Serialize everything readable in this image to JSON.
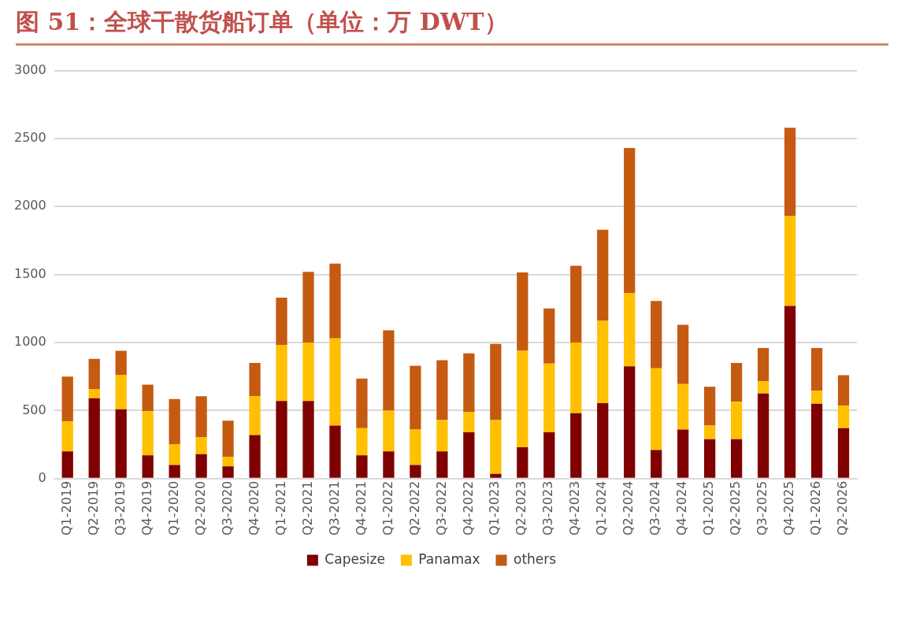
{
  "chart_data": {
    "type": "bar",
    "title": "图 51：全球干散货船订单（单位：万 DWT）",
    "stacked": true,
    "grid": "y",
    "legend": "bottom",
    "categories": [
      "Q1-2019",
      "Q2-2019",
      "Q3-2019",
      "Q4-2019",
      "Q1-2020",
      "Q2-2020",
      "Q3-2020",
      "Q4-2020",
      "Q1-2021",
      "Q2-2021",
      "Q3-2021",
      "Q4-2021",
      "Q1-2022",
      "Q2-2022",
      "Q3-2022",
      "Q4-2022",
      "Q1-2023",
      "Q2-2023",
      "Q3-2023",
      "Q4-2023",
      "Q1-2024",
      "Q2-2024",
      "Q3-2024",
      "Q4-2024",
      "Q1-2025",
      "Q2-2025",
      "Q3-2025",
      "Q4-2025",
      "Q1-2026",
      "Q2-2026"
    ],
    "ylim": [
      0,
      3000
    ],
    "yticks": [
      0,
      500,
      1000,
      1500,
      2000,
      2500,
      3000
    ],
    "series": [
      {
        "name": "Capesize",
        "color": "#7f0000",
        "values": [
          200,
          590,
          510,
          170,
          100,
          180,
          90,
          320,
          570,
          570,
          390,
          170,
          200,
          100,
          200,
          340,
          35,
          230,
          340,
          480,
          555,
          825,
          210,
          360,
          290,
          290,
          625,
          1270,
          550,
          370
        ]
      },
      {
        "name": "Panamax",
        "color": "#ffc000",
        "values": [
          220,
          65,
          250,
          325,
          150,
          125,
          70,
          285,
          410,
          430,
          640,
          200,
          300,
          260,
          230,
          150,
          395,
          710,
          505,
          520,
          605,
          540,
          600,
          335,
          100,
          275,
          90,
          660,
          95,
          165
        ]
      },
      {
        "name": "others",
        "color": "#c55a11",
        "values": [
          330,
          225,
          180,
          195,
          335,
          300,
          265,
          245,
          350,
          520,
          550,
          365,
          590,
          470,
          440,
          430,
          560,
          575,
          405,
          565,
          670,
          1065,
          495,
          435,
          285,
          285,
          245,
          650,
          315,
          225
        ]
      }
    ]
  }
}
